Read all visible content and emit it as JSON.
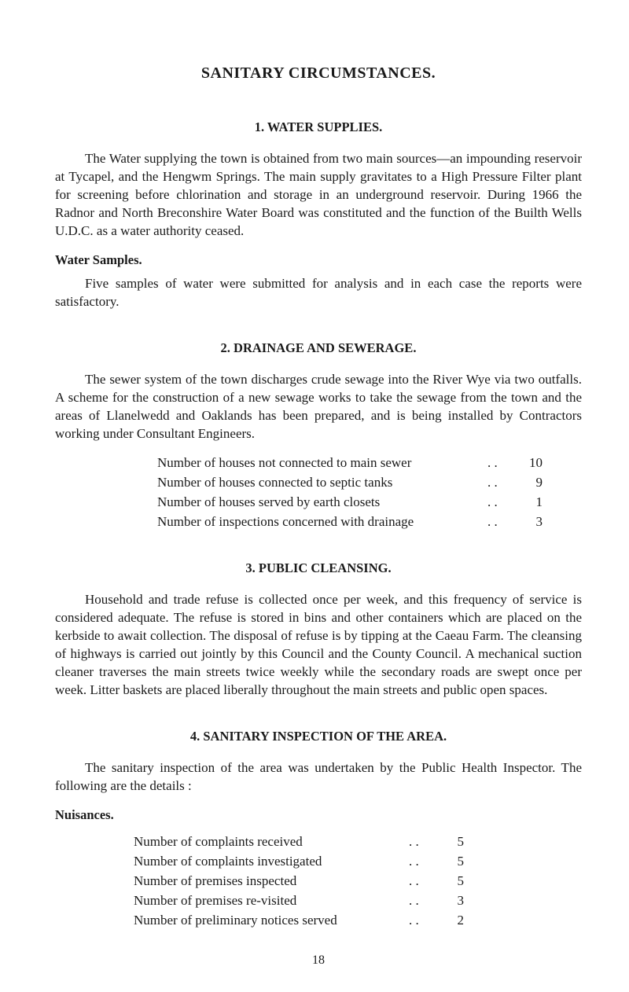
{
  "title": "SANITARY CIRCUMSTANCES.",
  "page_number": "18",
  "sections": {
    "s1": {
      "heading": "1.  WATER SUPPLIES.",
      "para1": "The Water supplying the town is obtained from two main sources—an impounding reservoir at Tycapel, and the Hengwm Springs.  The main supply gravitates to a High Pressure Filter plant for screening before chlorination and storage in an underground reservoir.  During 1966 the Radnor and North Breconshire Water Board was constituted and the function of the Builth Wells U.D.C. as a water authority ceased.",
      "sub_heading": "Water Samples.",
      "para2": "Five samples of water were submitted for analysis and in each case the reports were satisfactory."
    },
    "s2": {
      "heading": "2.  DRAINAGE AND SEWERAGE.",
      "para1": "The sewer system of the town discharges crude sewage into the River Wye via two outfalls.  A scheme for the construction of a new sewage works to take the sewage from the town and the areas of Llanelwedd and Oaklands has been prepared, and is being installed by Contractors working under Consultant Engineers.",
      "counts": [
        {
          "label": "Number of houses not connected to main sewer",
          "dots": ". .",
          "value": "10"
        },
        {
          "label": "Number of houses connected to septic tanks",
          "dots": ". .",
          "value": "9"
        },
        {
          "label": "Number of houses served by earth closets",
          "dots": ". .",
          "value": "1"
        },
        {
          "label": "Number of inspections concerned with drainage",
          "dots": ". .",
          "value": "3"
        }
      ]
    },
    "s3": {
      "heading": "3.  PUBLIC CLEANSING.",
      "para1": "Household and trade refuse is collected once per week, and this frequency of service is considered adequate.  The refuse is stored in bins and other containers which are placed on the kerbside to await collection.  The disposal of refuse is by tipping at the Caeau Farm.  The cleansing of highways is carried out jointly by this Council and the County Council.  A mechanical suction cleaner traverses the main streets twice weekly while the secondary roads are swept once per week.  Litter baskets are placed liberally throughout the main streets and public open spaces."
    },
    "s4": {
      "heading": "4.  SANITARY INSPECTION OF THE AREA.",
      "para1": "The sanitary inspection of the area was undertaken by the Public Health Inspector. The following are the details :",
      "sub_heading": "Nuisances.",
      "counts": [
        {
          "label": "Number of complaints received",
          "dots": ". .",
          "value": "5"
        },
        {
          "label": "Number of complaints investigated",
          "dots": ". .",
          "value": "5"
        },
        {
          "label": "Number of premises inspected",
          "dots": ". .",
          "value": "5"
        },
        {
          "label": "Number of premises re-visited",
          "dots": ". .",
          "value": "3"
        },
        {
          "label": "Number of preliminary notices served",
          "dots": ". .",
          "value": "2"
        }
      ]
    }
  }
}
